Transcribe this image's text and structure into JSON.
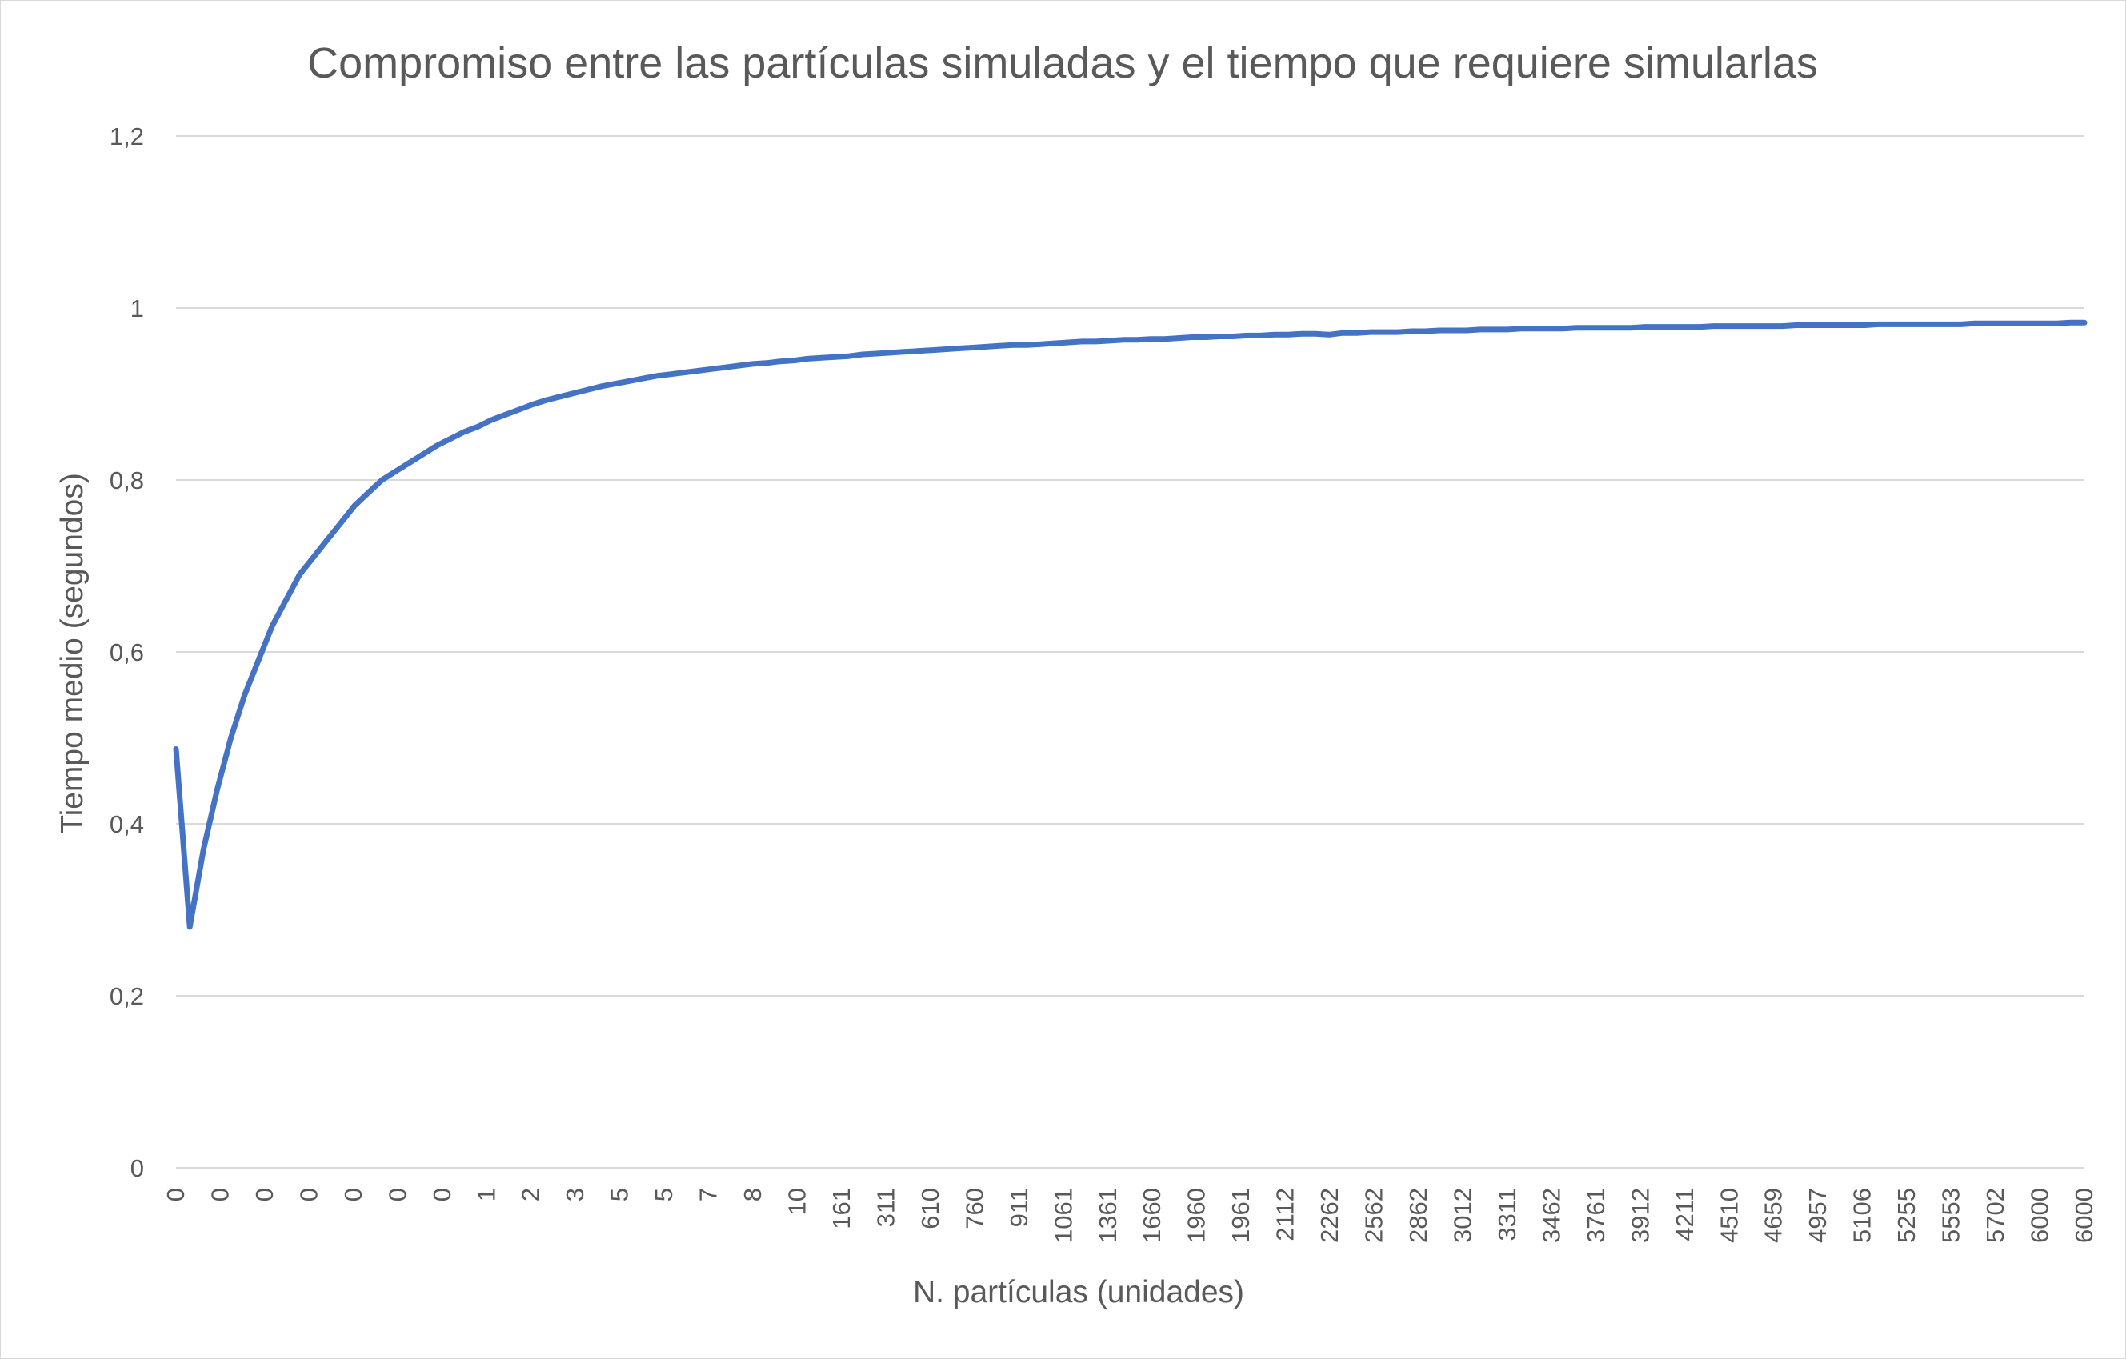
{
  "chart_data": {
    "type": "line",
    "title": "Compromiso entre las partículas simuladas y el tiempo que requiere simularlas",
    "xlabel": "N. partículas (unidades)",
    "ylabel": "Tiempo medio (segundos)",
    "ylim": [
      0,
      1.2
    ],
    "yticks": [
      "0",
      "0,2",
      "0,4",
      "0,6",
      "0,8",
      "1",
      "1,2"
    ],
    "grid": true,
    "legend": "none",
    "color": "#4472C4",
    "x_tick_labels": [
      "0",
      "0",
      "0",
      "0",
      "0",
      "0",
      "0",
      "1",
      "2",
      "3",
      "5",
      "5",
      "7",
      "8",
      "10",
      "161",
      "311",
      "610",
      "760",
      "911",
      "1061",
      "1361",
      "1660",
      "1960",
      "1961",
      "2112",
      "2262",
      "2562",
      "2862",
      "3012",
      "3311",
      "3462",
      "3761",
      "3912",
      "4211",
      "4510",
      "4659",
      "4957",
      "5106",
      "5255",
      "5553",
      "5702",
      "6000",
      "6000"
    ],
    "series": [
      {
        "values": [
          0.487,
          0.28,
          0.37,
          0.44,
          0.5,
          0.55,
          0.59,
          0.63,
          0.66,
          0.69,
          0.71,
          0.73,
          0.75,
          0.77,
          0.785,
          0.8,
          0.81,
          0.82,
          0.83,
          0.84,
          0.848,
          0.856,
          0.862,
          0.87,
          0.876,
          0.882,
          0.888,
          0.893,
          0.897,
          0.901,
          0.905,
          0.909,
          0.912,
          0.915,
          0.918,
          0.921,
          0.923,
          0.925,
          0.927,
          0.929,
          0.931,
          0.933,
          0.935,
          0.936,
          0.938,
          0.939,
          0.941,
          0.942,
          0.943,
          0.944,
          0.946,
          0.947,
          0.948,
          0.949,
          0.95,
          0.951,
          0.952,
          0.953,
          0.954,
          0.955,
          0.956,
          0.957,
          0.957,
          0.958,
          0.959,
          0.96,
          0.961,
          0.961,
          0.962,
          0.963,
          0.963,
          0.964,
          0.964,
          0.965,
          0.966,
          0.966,
          0.967,
          0.967,
          0.968,
          0.968,
          0.969,
          0.969,
          0.97,
          0.97,
          0.969,
          0.971,
          0.971,
          0.972,
          0.972,
          0.972,
          0.973,
          0.973,
          0.974,
          0.974,
          0.974,
          0.975,
          0.975,
          0.975,
          0.976,
          0.976,
          0.976,
          0.976,
          0.977,
          0.977,
          0.977,
          0.977,
          0.977,
          0.978,
          0.978,
          0.978,
          0.978,
          0.978,
          0.979,
          0.979,
          0.979,
          0.979,
          0.979,
          0.979,
          0.98,
          0.98,
          0.98,
          0.98,
          0.98,
          0.98,
          0.981,
          0.981,
          0.981,
          0.981,
          0.981,
          0.981,
          0.981,
          0.982,
          0.982,
          0.982,
          0.982,
          0.982,
          0.982,
          0.982,
          0.983,
          0.983
        ]
      }
    ]
  }
}
